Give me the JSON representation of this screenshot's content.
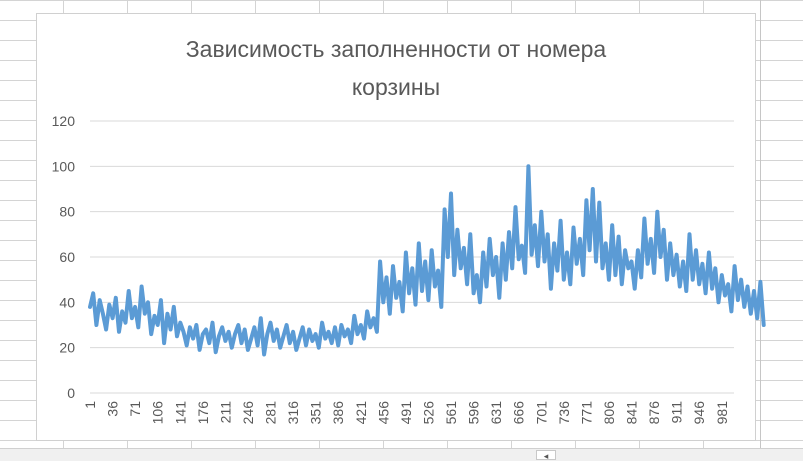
{
  "chart_data": {
    "type": "line",
    "title_lines": [
      "Зависимость заполненности от номера",
      "корзины"
    ],
    "xlabel": "",
    "ylabel": "",
    "ylim": [
      0,
      120
    ],
    "y_ticks": [
      0,
      20,
      40,
      60,
      80,
      100,
      120
    ],
    "x_range": [
      1,
      1000
    ],
    "x_tick_labels": [
      1,
      36,
      71,
      106,
      141,
      176,
      211,
      246,
      281,
      316,
      351,
      386,
      421,
      456,
      491,
      526,
      561,
      596,
      631,
      666,
      701,
      736,
      771,
      806,
      841,
      876,
      911,
      946,
      981
    ],
    "grid": "horizontal",
    "legend": "none",
    "line_color": "#5b9bd5",
    "series": [
      {
        "x_start": 1,
        "x_step": 5,
        "values": [
          38,
          44,
          30,
          41,
          35,
          28,
          39,
          33,
          42,
          27,
          36,
          31,
          45,
          33,
          38,
          29,
          47,
          35,
          40,
          26,
          34,
          30,
          41,
          22,
          35,
          28,
          38,
          25,
          31,
          27,
          21,
          29,
          24,
          30,
          19,
          26,
          28,
          22,
          31,
          18,
          25,
          29,
          23,
          27,
          20,
          26,
          30,
          22,
          28,
          19,
          24,
          29,
          21,
          33,
          17,
          26,
          31,
          23,
          28,
          20,
          25,
          30,
          22,
          27,
          19,
          24,
          29,
          21,
          28,
          23,
          26,
          20,
          31,
          24,
          27,
          22,
          29,
          21,
          30,
          25,
          28,
          22,
          34,
          26,
          30,
          24,
          36,
          29,
          33,
          27,
          58,
          40,
          51,
          35,
          56,
          42,
          49,
          36,
          62,
          44,
          55,
          39,
          66,
          45,
          58,
          41,
          63,
          47,
          54,
          38,
          81,
          60,
          88,
          52,
          72,
          55,
          64,
          48,
          70,
          44,
          52,
          40,
          62,
          47,
          68,
          52,
          60,
          42,
          66,
          50,
          71,
          55,
          82,
          59,
          65,
          53,
          100,
          61,
          74,
          56,
          80,
          58,
          70,
          46,
          66,
          54,
          76,
          50,
          62,
          48,
          73,
          57,
          68,
          52,
          85,
          63,
          90,
          58,
          84,
          55,
          66,
          50,
          74,
          52,
          69,
          48,
          63,
          55,
          58,
          46,
          63,
          51,
          77,
          57,
          68,
          53,
          80,
          60,
          72,
          50,
          66,
          52,
          61,
          47,
          58,
          45,
          70,
          50,
          63,
          48,
          57,
          44,
          62,
          46,
          55,
          40,
          52,
          43,
          48,
          36,
          56,
          41,
          50,
          38,
          47,
          35,
          45,
          33,
          49,
          30
        ]
      }
    ]
  }
}
